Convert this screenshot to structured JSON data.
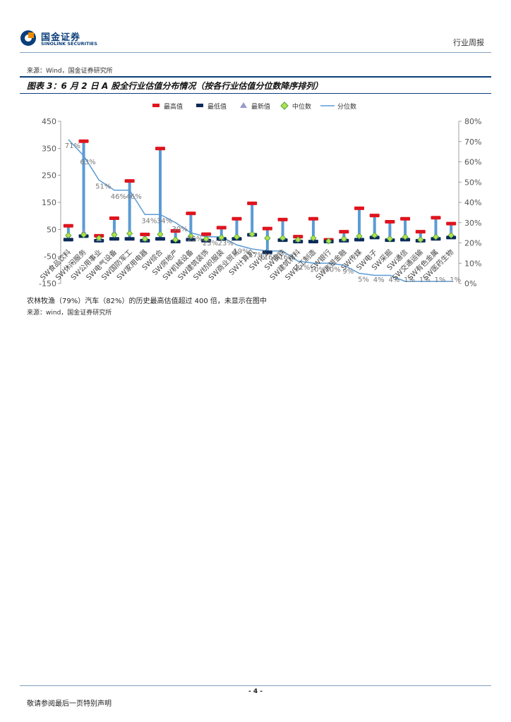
{
  "header": {
    "logo_cn": "国金证券",
    "logo_en": "SINOLINK SECURITIES",
    "report_type": "行业周报"
  },
  "source_top": "来源：Wind，国金证券研究所",
  "figure": {
    "title": "图表 3：6 月 2 日 A 股全行业估值分布情况（按各行业估值分位数降序排列）"
  },
  "note": "农林牧渔（79%）汽车（82%）的历史最高估值超过 400 倍，未显示在图中",
  "source_bottom": "来源：wind，国金证券研究所",
  "footer": {
    "page": "- 4 -",
    "disclaimer": "敬请参阅最后一页特别声明"
  },
  "colors": {
    "max": "#e0141e",
    "min": "#0b2a5a",
    "latest": "#9999cc",
    "median": "#b8e04a",
    "median_border": "#3aa63a",
    "bar": "#5b9bd5",
    "line": "#5b9bd5"
  },
  "chart_data": {
    "type": "bar",
    "legend": [
      "最高值",
      "最低值",
      "最新值",
      "中位数",
      "分位数"
    ],
    "legend_position": "top",
    "categories": [
      "SW食品饮料",
      "SW休闲服务",
      "SW公用事业",
      "SW电气设备",
      "SW国防军工",
      "SW家用电器",
      "SW综合",
      "SW房地产",
      "SW机械设备",
      "SW建筑装饰",
      "SW纺织服装",
      "SW商业贸易",
      "SW计算机",
      "SW化工",
      "SW钢铁",
      "SW建筑材料",
      "SW轻工制造",
      "SW银行",
      "SW非银金融",
      "SW传媒",
      "SW电子",
      "SW采掘",
      "SW通信",
      "SW交通运输",
      "SW有色金属",
      "SW医药生物"
    ],
    "series": [
      {
        "name": "最高值",
        "values": [
          62,
          375,
          25,
          90,
          228,
          30,
          348,
          43,
          108,
          31,
          55,
          88,
          145,
          52,
          85,
          22,
          88,
          10,
          40,
          127,
          100,
          77,
          88,
          40,
          92,
          70
        ]
      },
      {
        "name": "最低值",
        "values": [
          12,
          25,
          8,
          15,
          15,
          8,
          15,
          5,
          12,
          8,
          15,
          15,
          30,
          -35,
          10,
          5,
          5,
          5,
          8,
          12,
          20,
          10,
          12,
          8,
          15,
          20
        ]
      },
      {
        "name": "最新值",
        "values": [
          30,
          40,
          15,
          40,
          40,
          15,
          35,
          15,
          28,
          15,
          20,
          25,
          35,
          20,
          20,
          12,
          20,
          8,
          15,
          30,
          30,
          20,
          25,
          15,
          25,
          35
        ]
      },
      {
        "name": "中位数",
        "values": [
          28,
          30,
          18,
          30,
          35,
          15,
          32,
          12,
          25,
          15,
          20,
          22,
          32,
          18,
          18,
          12,
          18,
          7,
          15,
          25,
          28,
          15,
          22,
          12,
          22,
          28
        ]
      }
    ],
    "percentile": {
      "name": "分位数",
      "values": [
        71,
        63,
        51,
        46,
        46,
        34,
        34,
        30,
        25,
        23,
        23,
        19,
        17,
        16,
        16,
        11,
        10,
        10,
        9,
        5,
        4,
        4,
        1,
        1,
        1,
        1
      ],
      "labels": [
        "71%",
        "63%",
        "51%",
        "46%",
        "46%",
        "34%",
        "34%",
        "30%",
        "25%",
        "23%",
        "23%",
        "19%",
        "17%",
        "16%",
        "16%",
        "11%",
        "10%",
        "10%",
        "9%",
        "5%",
        "4%",
        "4%",
        "1%",
        "1%",
        "1%",
        "1%"
      ]
    },
    "ylim": [
      -150,
      450
    ],
    "yticks": [
      -150,
      -50,
      50,
      150,
      250,
      350,
      450
    ],
    "y2lim": [
      0,
      80
    ],
    "y2ticks": [
      "0%",
      "10%",
      "20%",
      "30%",
      "40%",
      "50%",
      "60%",
      "70%",
      "80%"
    ],
    "grid": false
  }
}
